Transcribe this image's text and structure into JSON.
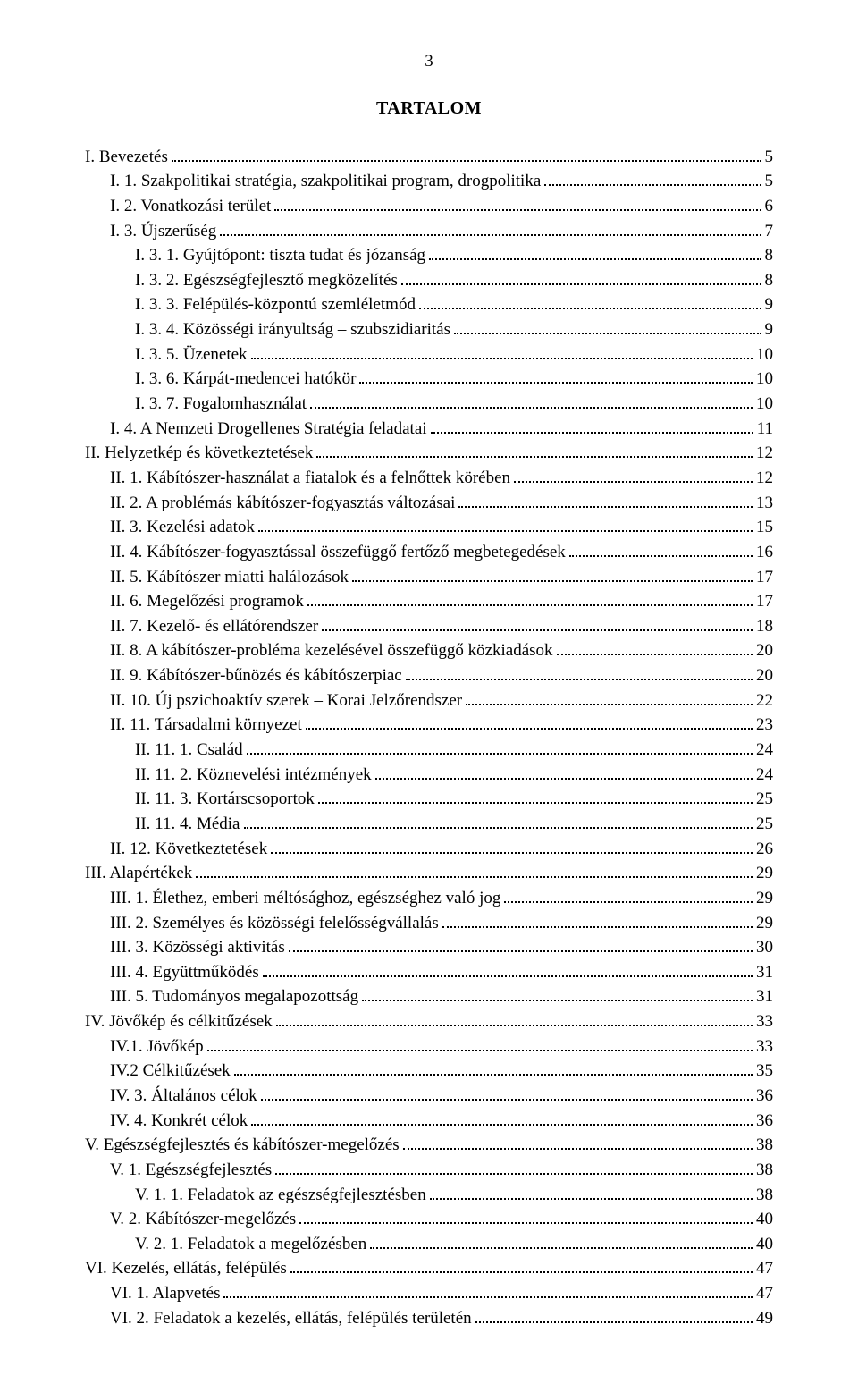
{
  "page_number": "3",
  "title": "TARTALOM",
  "font_family": "Times New Roman",
  "font_size_pt": 14,
  "text_color": "#000000",
  "background_color": "#ffffff",
  "toc": [
    {
      "indent": 0,
      "label": "I. Bevezetés",
      "page": "5"
    },
    {
      "indent": 1,
      "label": "I. 1. Szakpolitikai stratégia, szakpolitikai program, drogpolitika",
      "page": "5"
    },
    {
      "indent": 1,
      "label": "I. 2. Vonatkozási terület",
      "page": "6"
    },
    {
      "indent": 1,
      "label": "I. 3. Újszerűség",
      "page": "7"
    },
    {
      "indent": 2,
      "label": "I. 3. 1. Gyújtópont: tiszta tudat és józanság",
      "page": "8"
    },
    {
      "indent": 2,
      "label": "I. 3. 2. Egészségfejlesztő megközelítés",
      "page": "8"
    },
    {
      "indent": 2,
      "label": "I. 3. 3. Felépülés-központú szemléletmód",
      "page": "9"
    },
    {
      "indent": 2,
      "label": "I. 3. 4. Közösségi irányultság – szubszidiaritás",
      "page": "9"
    },
    {
      "indent": 2,
      "label": "I. 3. 5. Üzenetek",
      "page": "10"
    },
    {
      "indent": 2,
      "label": "I. 3. 6. Kárpát-medencei hatókör",
      "page": "10"
    },
    {
      "indent": 2,
      "label": "I. 3. 7. Fogalomhasználat",
      "page": "10"
    },
    {
      "indent": 1,
      "label": "I. 4. A Nemzeti Drogellenes Stratégia feladatai",
      "page": "11"
    },
    {
      "indent": 0,
      "label": "II. Helyzetkép és következtetések",
      "page": "12"
    },
    {
      "indent": 1,
      "label": "II. 1. Kábítószer-használat a fiatalok és a felnőttek körében",
      "page": "12"
    },
    {
      "indent": 1,
      "label": "II. 2. A problémás kábítószer-fogyasztás változásai",
      "page": "13"
    },
    {
      "indent": 1,
      "label": "II. 3. Kezelési adatok",
      "page": "15"
    },
    {
      "indent": 1,
      "label": "II. 4. Kábítószer-fogyasztással összefüggő fertőző megbetegedések",
      "page": "16"
    },
    {
      "indent": 1,
      "label": "II. 5. Kábítószer miatti halálozások",
      "page": "17"
    },
    {
      "indent": 1,
      "label": "II. 6. Megelőzési programok",
      "page": "17"
    },
    {
      "indent": 1,
      "label": "II. 7. Kezelő- és ellátórendszer",
      "page": "18"
    },
    {
      "indent": 1,
      "label": "II. 8. A kábítószer-probléma kezelésével összefüggő közkiadások",
      "page": "20"
    },
    {
      "indent": 1,
      "label": "II. 9. Kábítószer-bűnözés és kábítószerpiac",
      "page": "20"
    },
    {
      "indent": 1,
      "label": "II. 10. Új pszichoaktív szerek – Korai Jelzőrendszer",
      "page": "22"
    },
    {
      "indent": 1,
      "label": "II. 11. Társadalmi környezet",
      "page": "23"
    },
    {
      "indent": 2,
      "label": "II. 11. 1. Család",
      "page": "24"
    },
    {
      "indent": 2,
      "label": "II. 11. 2. Köznevelési intézmények",
      "page": "24"
    },
    {
      "indent": 2,
      "label": "II. 11. 3. Kortárscsoportok",
      "page": "25"
    },
    {
      "indent": 2,
      "label": "II. 11. 4. Média",
      "page": "25"
    },
    {
      "indent": 1,
      "label": "II. 12. Következtetések",
      "page": "26"
    },
    {
      "indent": 0,
      "label": "III. Alapértékek",
      "page": "29"
    },
    {
      "indent": 1,
      "label": "III. 1. Élethez, emberi méltósághoz, egészséghez való jog",
      "page": "29"
    },
    {
      "indent": 1,
      "label": "III. 2. Személyes és közösségi felelősségvállalás",
      "page": "29"
    },
    {
      "indent": 1,
      "label": "III. 3. Közösségi aktivitás",
      "page": "30"
    },
    {
      "indent": 1,
      "label": "III. 4. Együttműködés",
      "page": "31"
    },
    {
      "indent": 1,
      "label": "III. 5. Tudományos megalapozottság",
      "page": "31"
    },
    {
      "indent": 0,
      "label": "IV. Jövőkép és célkitűzések",
      "page": "33"
    },
    {
      "indent": 1,
      "label": "IV.1. Jövőkép",
      "page": "33"
    },
    {
      "indent": 1,
      "label": "IV.2 Célkitűzések",
      "page": "35"
    },
    {
      "indent": 1,
      "label": "IV. 3. Általános célok",
      "page": "36"
    },
    {
      "indent": 1,
      "label": "IV. 4. Konkrét célok",
      "page": "36"
    },
    {
      "indent": 0,
      "label": "V. Egészségfejlesztés és kábítószer-megelőzés",
      "page": "38"
    },
    {
      "indent": 1,
      "label": "V. 1. Egészségfejlesztés",
      "page": "38"
    },
    {
      "indent": 2,
      "label": "V. 1. 1. Feladatok az egészségfejlesztésben",
      "page": "38"
    },
    {
      "indent": 1,
      "label": "V. 2. Kábítószer-megelőzés",
      "page": "40"
    },
    {
      "indent": 2,
      "label": "V. 2. 1. Feladatok a megelőzésben",
      "page": "40"
    },
    {
      "indent": 0,
      "label": "VI. Kezelés, ellátás, felépülés",
      "page": "47"
    },
    {
      "indent": 1,
      "label": "VI. 1. Alapvetés",
      "page": "47"
    },
    {
      "indent": 1,
      "label": "VI. 2. Feladatok a kezelés, ellátás, felépülés területén",
      "page": "49"
    }
  ]
}
